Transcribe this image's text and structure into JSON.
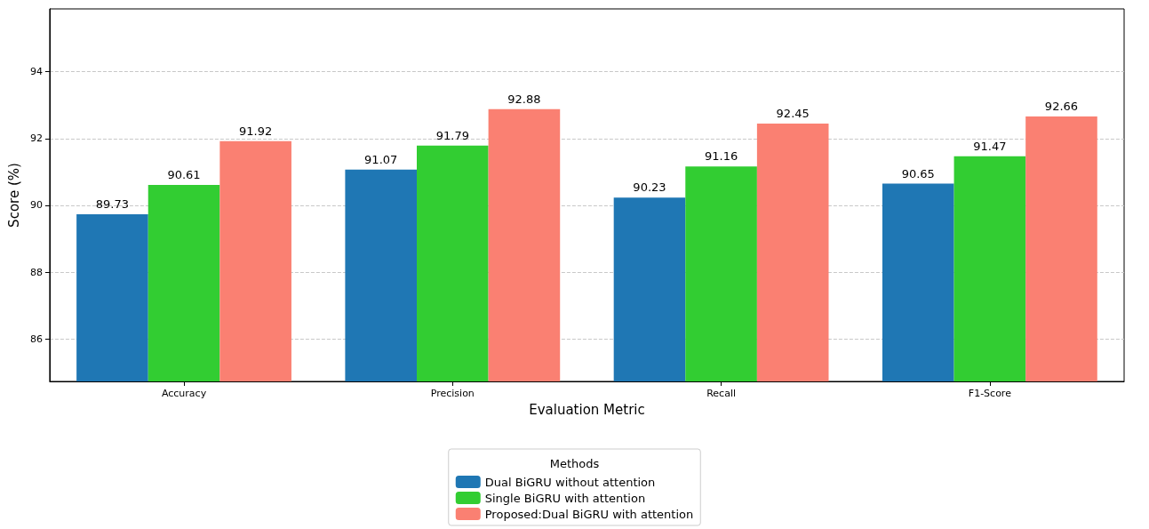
{
  "chart_data": {
    "type": "bar",
    "xlabel": "Evaluation Metric",
    "ylabel": "Score (%)",
    "legend_title": "Methods",
    "categories": [
      "Accuracy",
      "Precision",
      "Recall",
      "F1-Score"
    ],
    "series": [
      {
        "name": "Dual BiGRU without attention",
        "color": "#1f77b4",
        "values": [
          89.73,
          91.07,
          90.23,
          90.65
        ]
      },
      {
        "name": "Single BiGRU with attention",
        "color": "#32cd32",
        "values": [
          90.61,
          91.79,
          91.16,
          91.47
        ]
      },
      {
        "name": "Proposed:Dual BiGRU with attention",
        "color": "#fa8072",
        "values": [
          91.92,
          92.88,
          92.45,
          92.66
        ]
      }
    ],
    "ylim": [
      84.73,
      95.88
    ],
    "yticks": [
      86,
      88,
      90,
      92,
      94
    ],
    "grid": "y",
    "legend": "bottom",
    "data_labels": true
  }
}
